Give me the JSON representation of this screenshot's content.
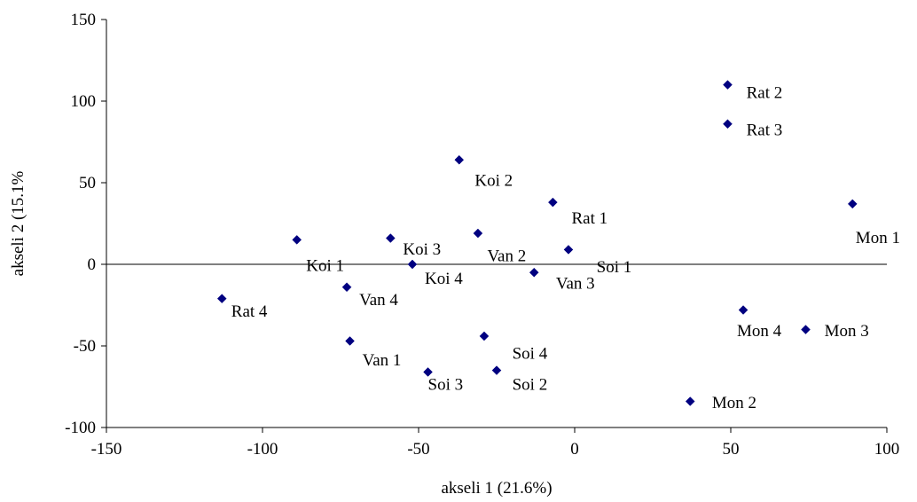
{
  "chart_data": {
    "type": "scatter",
    "title": "",
    "xlabel": "akseli 1 (21.6%)",
    "ylabel": "akseli 2 (15.1%",
    "xlim": [
      -150,
      100
    ],
    "ylim": [
      -100,
      150
    ],
    "xticks": [
      -150,
      -100,
      -50,
      0,
      50,
      100
    ],
    "yticks": [
      -100,
      -50,
      0,
      50,
      100,
      150
    ],
    "grid": false,
    "legend": "none",
    "marker": "diamond",
    "marker_color": "#000080",
    "points": [
      {
        "label": "Rat 2",
        "x": 49,
        "y": 110
      },
      {
        "label": "Rat 3",
        "x": 49,
        "y": 86
      },
      {
        "label": "Koi 2",
        "x": -37,
        "y": 64
      },
      {
        "label": "Rat 1",
        "x": -7,
        "y": 38
      },
      {
        "label": "Mon 1",
        "x": 89,
        "y": 37
      },
      {
        "label": "Van 2",
        "x": -31,
        "y": 19
      },
      {
        "label": "",
        "x": -89,
        "y": 15
      },
      {
        "label": "Koi 3",
        "x": -59,
        "y": 16
      },
      {
        "label": "Soi 1",
        "x": -2,
        "y": 9
      },
      {
        "label": "Koi 4",
        "x": -52,
        "y": 0
      },
      {
        "label": "Van 3",
        "x": -13,
        "y": -5
      },
      {
        "label": "Koi 1",
        "x": -73,
        "y": -14
      },
      {
        "label": "Rat 4",
        "x": -113,
        "y": -21
      },
      {
        "label": "Mon 4",
        "x": 54,
        "y": -28
      },
      {
        "label": "Mon 3",
        "x": 74,
        "y": -40
      },
      {
        "label": "Van 4",
        "x": -72,
        "y": -47
      },
      {
        "label": "Soi 4",
        "x": -29,
        "y": -44
      },
      {
        "label": "Van 1",
        "x": -47,
        "y": -66
      },
      {
        "label": "Soi 3",
        "x": -25,
        "y": -65
      },
      {
        "label": "Mon 2",
        "x": 37,
        "y": -84
      }
    ],
    "text_labels": [
      {
        "text": "Rat 2"
      },
      {
        "text": "Rat 3"
      },
      {
        "text": "Koi 2"
      },
      {
        "text": "Rat 1"
      },
      {
        "text": "Mon 1"
      },
      {
        "text": "Koi 3"
      },
      {
        "text": "Van 2"
      },
      {
        "text": "Soi 1"
      },
      {
        "text": "Koi 1"
      },
      {
        "text": "Koi 4"
      },
      {
        "text": "Van 3"
      },
      {
        "text": "Van 4"
      },
      {
        "text": "Rat 4"
      },
      {
        "text": "Mon 4"
      },
      {
        "text": "Mon 3"
      },
      {
        "text": "Soi 4"
      },
      {
        "text": "Van 1"
      },
      {
        "text": "Soi 3"
      },
      {
        "text": "Soi 2"
      },
      {
        "text": "Mon 2"
      }
    ]
  }
}
